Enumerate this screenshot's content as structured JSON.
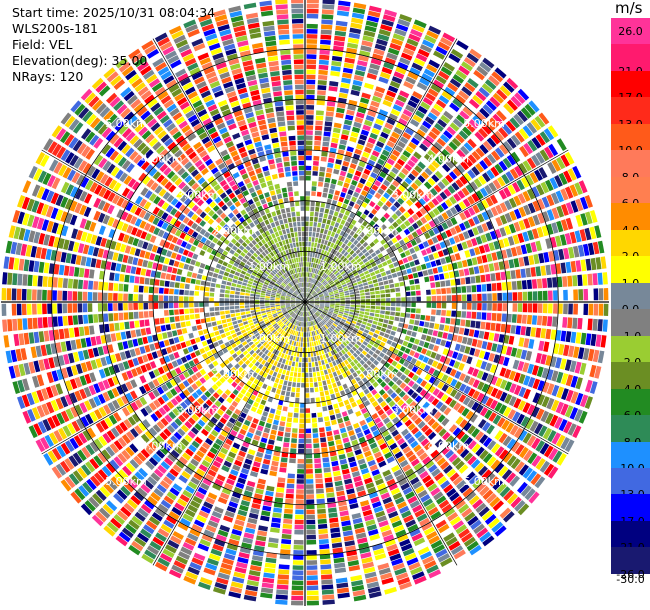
{
  "info": {
    "start_time": "Start time: 2025/10/31 08:04:34",
    "instrument": "WLS200s-181",
    "field": "Field: VEL",
    "elevation": "Elevation(deg): 35.00",
    "nrays": "NRays: 120"
  },
  "colorbar": {
    "unit": "m/s",
    "ticks": [
      "26.0",
      "21.0",
      "17.0",
      "13.0",
      "10.0",
      "8.0",
      "6.0",
      "4.0",
      "2.0",
      "1.0",
      "0.0",
      "-1.0",
      "-2.0",
      "-4.0",
      "-6.0",
      "-8.0",
      "-10.0",
      "-13.0",
      "-17.0",
      "-21.0",
      "-26.0",
      "-30.0"
    ],
    "colors": [
      "#ff3399",
      "#ff1a6e",
      "#ff0000",
      "#ff2a1a",
      "#ff5a1a",
      "#ff7a5a",
      "#ff7f50",
      "#ff8c00",
      "#ffd700",
      "#ffff00",
      "#778899",
      "#808080",
      "#9acd32",
      "#6b8e23",
      "#228b22",
      "#2e8b57",
      "#1e90ff",
      "#4169e1",
      "#0000ff",
      "#000080",
      "#191970"
    ]
  },
  "chart_data": {
    "type": "ppi",
    "field": "VEL",
    "units": "m/s",
    "elevation_deg": 35.0,
    "nrays": 120,
    "range_rings_km": [
      {
        "label": "1.00km",
        "range_km": 1
      },
      {
        "label": "2.00km",
        "range_km": 2
      },
      {
        "label": "3.00km",
        "range_km": 3
      },
      {
        "label": "4.00km",
        "range_km": 4
      },
      {
        "label": "5.00km",
        "range_km": 5
      }
    ],
    "max_range_km": 6.0,
    "inner_structure": [
      {
        "region": "core 0–0.5 km",
        "dominant_values": [
          "0.0",
          "-1.0"
        ]
      },
      {
        "region": "north side 0.5–2 km",
        "dominant_values": [
          "-1.0",
          "-2.0",
          "0.0"
        ]
      },
      {
        "region": "south/south-west side 0.3–2.3 km",
        "dominant_values": [
          "2.0",
          "1.0"
        ]
      },
      {
        "region": "beyond ~2.5 km",
        "dominant_values": [
          "noise, full palette"
        ]
      }
    ]
  }
}
